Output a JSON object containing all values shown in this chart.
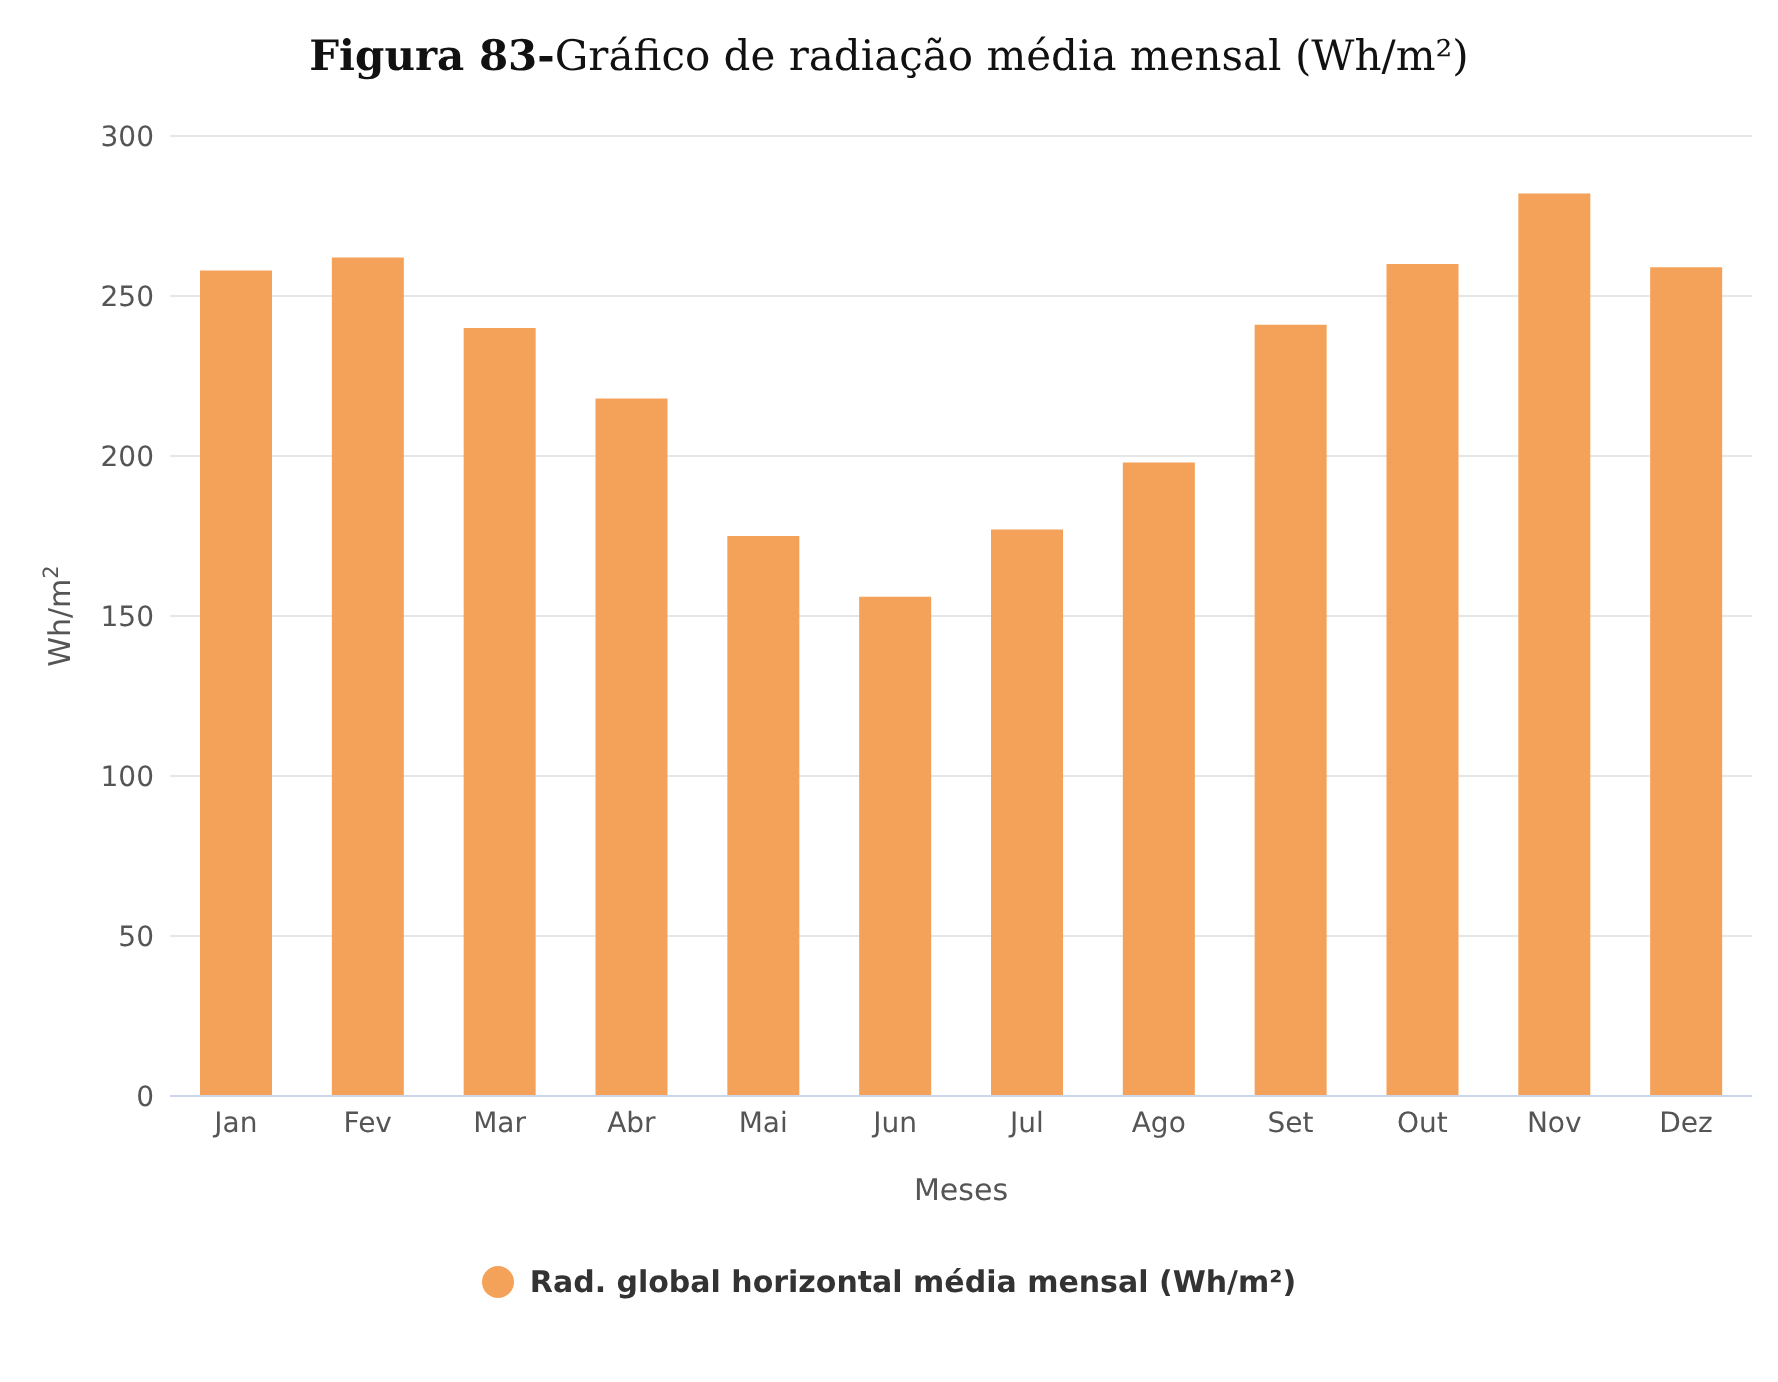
{
  "chart_data": {
    "type": "bar",
    "title": "Figura 83-Gráfico de radiação média mensal (Wh/m²)",
    "xlabel": "Meses",
    "ylabel": "Wh/m$^{2}$",
    "categories": [
      "Jan",
      "Fev",
      "Mar",
      "Abr",
      "Mai",
      "Jun",
      "Jul",
      "Ago",
      "Set",
      "Out",
      "Nov",
      "Dez"
    ],
    "series": [
      {
        "name": "Rad. global horizontal média mensal (Wh/m²)",
        "color": "#f4a259",
        "values": [
          258,
          262,
          240,
          218,
          175,
          156,
          177,
          198,
          241,
          260,
          282,
          259
        ]
      }
    ],
    "ylim": [
      0,
      300
    ],
    "yticks": [
      0,
      50,
      100,
      150,
      200,
      250,
      300
    ],
    "grid": "y",
    "legend": "bottom"
  }
}
